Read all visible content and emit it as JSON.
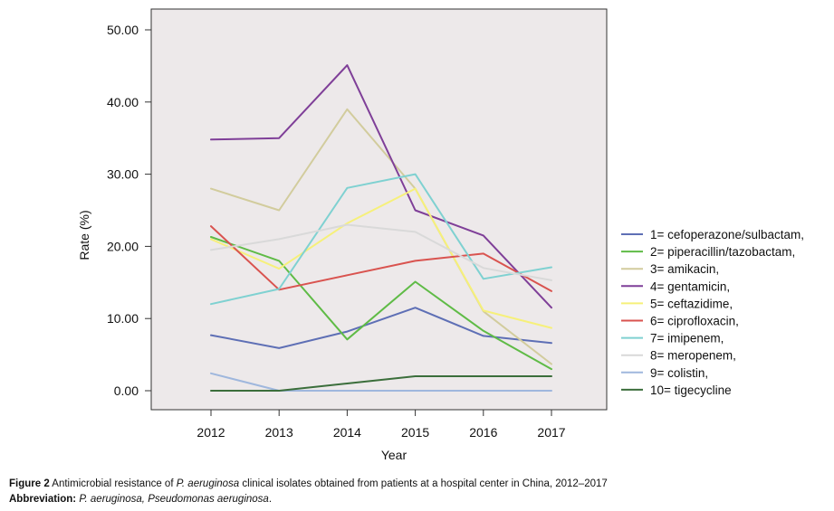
{
  "chart_data": {
    "type": "line",
    "title": "",
    "xlabel": "Year",
    "ylabel": "Rate (%)",
    "categories": [
      "2012",
      "2013",
      "2014",
      "2015",
      "2016",
      "2017"
    ],
    "ylim": [
      0,
      50
    ],
    "yticks": [
      "0.00",
      "10.00",
      "20.00",
      "30.00",
      "40.00",
      "50.00"
    ],
    "plot_background": "#ede9ea",
    "grid": false,
    "legend_position": "right",
    "series": [
      {
        "name": "1= cefoperazone/sulbactam,",
        "color": "#5e6fb5",
        "values": [
          7.7,
          5.9,
          8.2,
          11.5,
          7.6,
          6.6
        ]
      },
      {
        "name": "2= piperacillin/tazobactam,",
        "color": "#5fbb46",
        "values": [
          21.3,
          18.0,
          7.1,
          15.1,
          8.3,
          3.0
        ]
      },
      {
        "name": "3= amikacin,",
        "color": "#d2cc9d",
        "values": [
          28.0,
          25.0,
          39.0,
          28.0,
          11.0,
          3.7
        ]
      },
      {
        "name": "4= gentamicin,",
        "color": "#7f3f98",
        "values": [
          34.8,
          35.0,
          45.1,
          25.0,
          21.5,
          11.5
        ]
      },
      {
        "name": "5= ceftazidime,",
        "color": "#f6f07a",
        "values": [
          21.0,
          16.9,
          23.2,
          28.0,
          11.1,
          8.7
        ]
      },
      {
        "name": "6= ciprofloxacin,",
        "color": "#d9534f",
        "values": [
          22.8,
          14.0,
          16.0,
          18.0,
          19.0,
          13.8
        ]
      },
      {
        "name": "7= imipenem,",
        "color": "#7fd1d1",
        "values": [
          12.0,
          14.1,
          28.1,
          30.0,
          15.5,
          17.1
        ]
      },
      {
        "name": "8= meropenem,",
        "color": "#d9d9d9",
        "values": [
          19.5,
          21.0,
          23.0,
          22.0,
          17.0,
          15.3
        ]
      },
      {
        "name": "9= colistin,",
        "color": "#9fb7dd",
        "values": [
          2.4,
          0.0,
          0.0,
          0.0,
          0.0,
          0.0
        ]
      },
      {
        "name": "10= tigecycline",
        "color": "#3b6e3b",
        "values": [
          0.0,
          0.0,
          1.0,
          2.0,
          2.0,
          2.0
        ]
      }
    ]
  },
  "caption": {
    "figure_label": "Figure 2",
    "text_before_italic": " Antimicrobial resistance of ",
    "italic_name": "P. aeruginosa",
    "text_after_italic": " clinical isolates obtained from patients at a hospital center in China, 2012–2017",
    "abbreviation_label": "Abbreviation:",
    "abbreviation_italic": " P. aeruginosa, Pseudomonas aeruginosa",
    "abbreviation_end": "."
  }
}
